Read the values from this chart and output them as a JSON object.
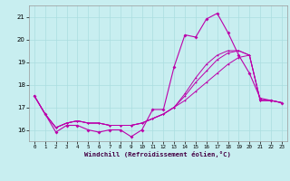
{
  "xlabel": "Windchill (Refroidissement éolien,°C)",
  "background_color": "#c8eef0",
  "line_color": "#bb00aa",
  "grid_color": "#aadde0",
  "xlim": [
    -0.5,
    23.5
  ],
  "ylim": [
    15.5,
    21.5
  ],
  "yticks": [
    16,
    17,
    18,
    19,
    20,
    21
  ],
  "xticks": [
    0,
    1,
    2,
    3,
    4,
    5,
    6,
    7,
    8,
    9,
    10,
    11,
    12,
    13,
    14,
    15,
    16,
    17,
    18,
    19,
    20,
    21,
    22,
    23
  ],
  "series0": [
    17.5,
    16.7,
    15.9,
    16.2,
    16.2,
    16.0,
    15.9,
    16.0,
    16.0,
    15.7,
    16.0,
    16.9,
    16.9,
    18.8,
    20.2,
    20.1,
    20.9,
    21.15,
    20.3,
    19.3,
    18.5,
    17.4,
    17.3,
    17.2
  ],
  "series1": [
    17.5,
    16.7,
    16.1,
    16.3,
    16.4,
    16.3,
    16.3,
    16.2,
    16.2,
    16.2,
    16.3,
    16.5,
    16.7,
    17.0,
    17.3,
    17.7,
    18.1,
    18.5,
    18.9,
    19.2,
    19.3,
    17.3,
    17.3,
    17.2
  ],
  "series2": [
    17.5,
    16.7,
    16.1,
    16.3,
    16.4,
    16.3,
    16.3,
    16.2,
    16.2,
    16.2,
    16.3,
    16.5,
    16.7,
    17.0,
    17.5,
    18.1,
    18.6,
    19.1,
    19.4,
    19.5,
    19.3,
    17.3,
    17.3,
    17.2
  ],
  "series3": [
    17.5,
    16.7,
    16.1,
    16.3,
    16.4,
    16.3,
    16.3,
    16.2,
    16.2,
    16.2,
    16.3,
    16.5,
    16.7,
    17.0,
    17.6,
    18.3,
    18.9,
    19.3,
    19.5,
    19.5,
    19.3,
    17.3,
    17.3,
    17.2
  ]
}
